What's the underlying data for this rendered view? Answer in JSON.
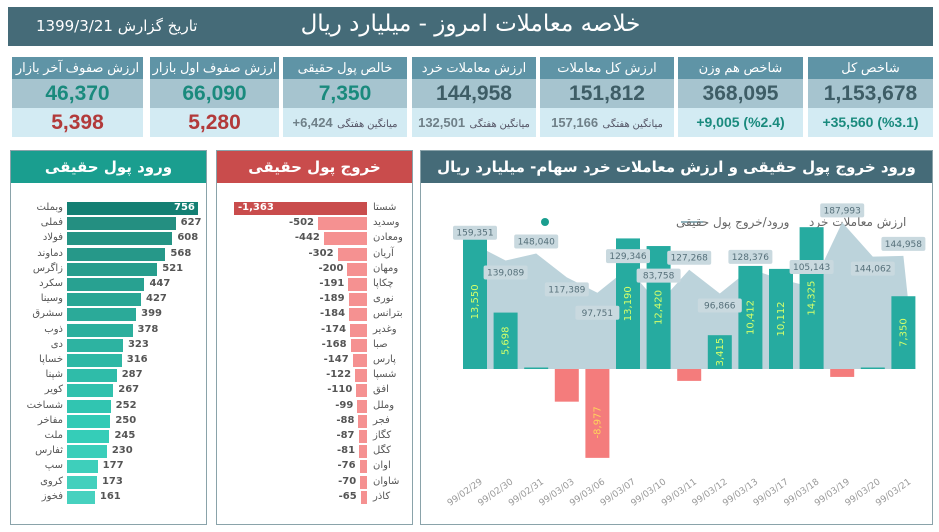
{
  "header": {
    "title": "خلاصه معاملات امروز - میلیارد ریال",
    "report_date_label": "تاریخ گزارش",
    "report_date": "1399/3/21"
  },
  "cards": [
    {
      "title": "شاخص کل",
      "value": "1,153,678",
      "sub": "+35,560 (%3.1)",
      "sub_type": "change"
    },
    {
      "title": "شاخص هم وزن",
      "value": "368,095",
      "sub": "+9,005 (%2.4)",
      "sub_type": "change"
    },
    {
      "title": "ارزش کل معاملات",
      "value": "151,812",
      "sub_label": "میانگین هفتگی",
      "sub": "157,166",
      "sub_type": "avg"
    },
    {
      "title": "ارزش معاملات خرد",
      "value": "144,958",
      "sub_label": "میانگین هفتگی",
      "sub": "132,501",
      "sub_type": "avg"
    },
    {
      "title": "خالص پول حقیقی",
      "value": "7,350",
      "sub_label": "میانگین هفتگی",
      "sub": "+6,424",
      "sub_type": "avg"
    },
    {
      "title": "ارزش صفوف اول بازار",
      "value": "66,090",
      "sub": "5,280",
      "sub_type": "red"
    },
    {
      "title": "ارزش صفوف آخر بازار",
      "value": "46,370",
      "sub": "5,398",
      "sub_type": "red"
    }
  ],
  "colors": {
    "header": "#456b78",
    "inflow": "#1a9e8f",
    "outflow": "#c94c4c",
    "bar_pos": "#26aba0",
    "bar_neg": "#f47c7c",
    "area": "#bcd3db"
  },
  "inflow": {
    "title": "ورود پول حقیقی",
    "items": [
      {
        "name": "وبملت",
        "value": 756
      },
      {
        "name": "فملی",
        "value": 627
      },
      {
        "name": "فولاد",
        "value": 608
      },
      {
        "name": "دماوند",
        "value": 568
      },
      {
        "name": "زاگرس",
        "value": 521
      },
      {
        "name": "سکرد",
        "value": 447
      },
      {
        "name": "وسینا",
        "value": 427
      },
      {
        "name": "سشرق",
        "value": 399
      },
      {
        "name": "ذوب",
        "value": 378
      },
      {
        "name": "دی",
        "value": 323
      },
      {
        "name": "خساپا",
        "value": 316
      },
      {
        "name": "شپنا",
        "value": 287
      },
      {
        "name": "کویر",
        "value": 267
      },
      {
        "name": "شساخت",
        "value": 252
      },
      {
        "name": "مفاخر",
        "value": 250
      },
      {
        "name": "ملت",
        "value": 245
      },
      {
        "name": "ثفارس",
        "value": 230
      },
      {
        "name": "سپ",
        "value": 177
      },
      {
        "name": "کروی",
        "value": 173
      },
      {
        "name": "فخوز",
        "value": 161
      }
    ]
  },
  "outflow": {
    "title": "خروج پول حقیقی",
    "items": [
      {
        "name": "شستا",
        "value": -1363
      },
      {
        "name": "وسدید",
        "value": -502
      },
      {
        "name": "ومعادن",
        "value": -442
      },
      {
        "name": "آریان",
        "value": -302
      },
      {
        "name": "ومهان",
        "value": -200
      },
      {
        "name": "چکاپا",
        "value": -191
      },
      {
        "name": "نوری",
        "value": -189
      },
      {
        "name": "بترانس",
        "value": -184
      },
      {
        "name": "وغدیر",
        "value": -174
      },
      {
        "name": "صبا",
        "value": -168
      },
      {
        "name": "پارس",
        "value": -147
      },
      {
        "name": "شسپا",
        "value": -122
      },
      {
        "name": "افق",
        "value": -110
      },
      {
        "name": "وملل",
        "value": -99
      },
      {
        "name": "فجر",
        "value": -88
      },
      {
        "name": "کگاز",
        "value": -87
      },
      {
        "name": "کگل",
        "value": -81
      },
      {
        "name": "اوان",
        "value": -76
      },
      {
        "name": "شاوان",
        "value": -70
      },
      {
        "name": "کاذر",
        "value": -65
      }
    ]
  },
  "chart_data": {
    "type": "bar",
    "title": "ورود خروج پول حقیقی و ارزش معاملات خرد سهام- میلیارد ریال",
    "legend": [
      {
        "name": "ارزش معاملات خرد",
        "kind": "area"
      },
      {
        "name": "ورود/خروج پول حقیقی",
        "kind": "bar"
      }
    ],
    "legend_position": "top",
    "categories": [
      "99/02/29",
      "99/02/30",
      "99/02/31",
      "99/03/03",
      "99/03/06",
      "99/03/07",
      "99/03/10",
      "99/03/11",
      "99/03/12",
      "99/03/13",
      "99/03/17",
      "99/03/18",
      "99/03/19",
      "99/03/20",
      "99/03/21"
    ],
    "series": [
      {
        "name": "ورود/خروج پول حقیقی",
        "type": "bar",
        "values": [
          13550,
          5698,
          150,
          -3300,
          -8977,
          13190,
          12420,
          -1200,
          3415,
          10412,
          10112,
          14325,
          -800,
          150,
          7350
        ],
        "labels": [
          "13,550",
          "5,698",
          "",
          "",
          "-8,977",
          "13,190",
          "12,420",
          "",
          "3,415",
          "10,412",
          "10,112",
          "14,325",
          "",
          "",
          "7,350"
        ]
      },
      {
        "name": "ارزش معاملات خرد",
        "type": "area",
        "values": [
          159351,
          139089,
          148040,
          117389,
          97751,
          129346,
          83758,
          127268,
          96866,
          128376,
          115000,
          105143,
          187993,
          144062,
          144958
        ],
        "labels": [
          "159,351",
          "139,089",
          "148,040",
          "117,389",
          "97,751",
          "129,346",
          "83,758",
          "127,268",
          "96,866",
          "128,376",
          "",
          "105,143",
          "187,993",
          "144,062",
          "144,958"
        ]
      }
    ]
  }
}
